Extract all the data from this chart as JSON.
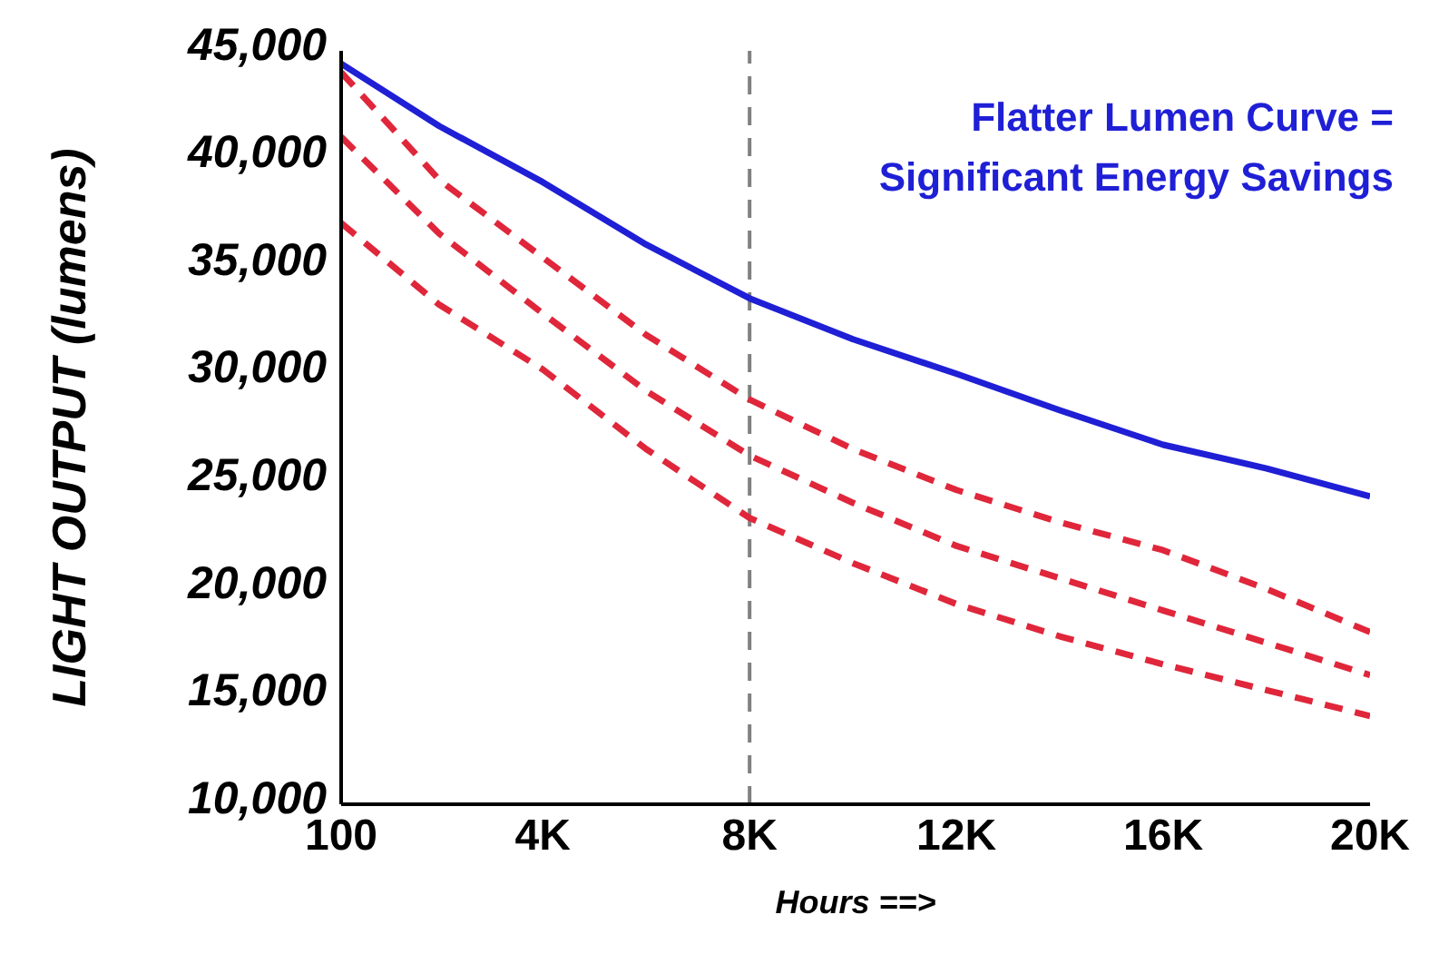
{
  "chart_data": {
    "type": "line",
    "xlabel": "Hours ==>",
    "ylabel": "LIGHT OUTPUT (lumens)",
    "annotations": [
      "Flatter Lumen Curve =",
      "Significant Energy Savings"
    ],
    "x": [
      100,
      2000,
      4000,
      6000,
      8000,
      10000,
      12000,
      14000,
      16000,
      18000,
      20000
    ],
    "series": [
      {
        "color": "#1f1fd6",
        "line_style": "solid",
        "values": [
          44400,
          41500,
          38900,
          36000,
          33500,
          31600,
          30000,
          28300,
          26700,
          25600,
          24300
        ]
      },
      {
        "color": "#e0263a",
        "line_style": "dashed",
        "values": [
          44000,
          39000,
          35400,
          31800,
          28800,
          26500,
          24600,
          23100,
          21800,
          20000,
          18000
        ]
      },
      {
        "color": "#e0263a",
        "line_style": "dashed",
        "values": [
          41000,
          36500,
          32800,
          29200,
          26200,
          24000,
          22000,
          20500,
          19000,
          17500,
          16000
        ]
      },
      {
        "color": "#e0263a",
        "line_style": "dashed",
        "values": [
          37000,
          33200,
          30200,
          26500,
          23300,
          21200,
          19300,
          17800,
          16500,
          15300,
          14100
        ]
      }
    ],
    "xlim": [
      100,
      20000
    ],
    "xticks": [
      100,
      {
        "value": 4000,
        "label": "4K"
      },
      {
        "value": 8000,
        "label": "8K"
      },
      {
        "value": 12000,
        "label": "12K"
      },
      {
        "value": 16000,
        "label": "16K"
      },
      {
        "value": 20000,
        "label": "20K"
      }
    ],
    "ylim": [
      10000,
      45000
    ],
    "yticks": [
      {
        "value": 10000,
        "label": "10,000"
      },
      {
        "value": 15000,
        "label": "15,000"
      },
      {
        "value": 20000,
        "label": "20,000"
      },
      {
        "value": 25000,
        "label": "25,000"
      },
      {
        "value": 30000,
        "label": "30,000"
      },
      {
        "value": 35000,
        "label": "35,000"
      },
      {
        "value": 40000,
        "label": "40,000"
      },
      {
        "value": 45000,
        "label": "45,000"
      }
    ],
    "ref_lines": [
      {
        "axis": "x",
        "value": 8000,
        "color": "#808080",
        "line_style": "dashed"
      }
    ],
    "grid": false,
    "marker": "none",
    "legend": false
  }
}
